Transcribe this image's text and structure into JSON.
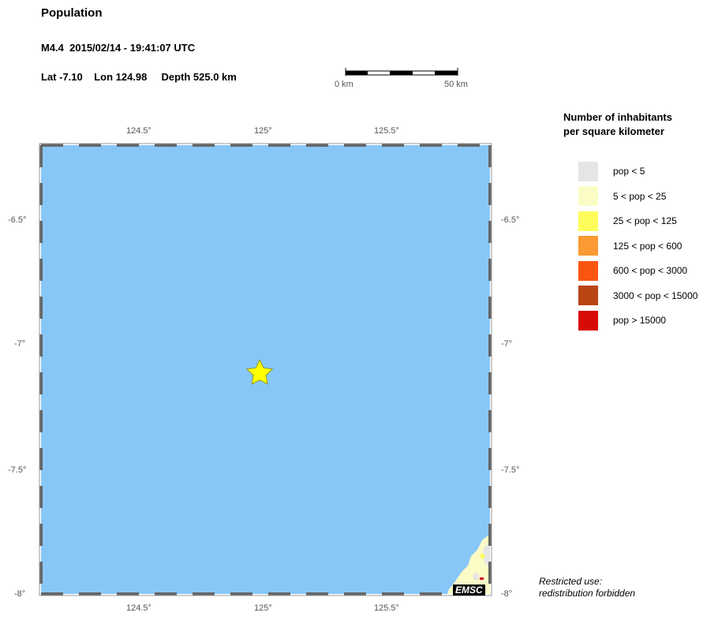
{
  "header": {
    "title": "Population",
    "event_line": "M4.4  2015/02/14 - 19:41:07 UTC",
    "coords_line": "Lat -7.10    Lon 124.98     Depth 525.0 km"
  },
  "scale_bar": {
    "start_label": "0 km",
    "end_label": "50 km"
  },
  "map": {
    "lon_ticks": [
      "124.5°",
      "125°",
      "125.5°"
    ],
    "lat_ticks": [
      "-6.5°",
      "-7°",
      "-7.5°",
      "-8°"
    ],
    "epicenter": {
      "lat": -7.1,
      "lon": 124.98,
      "icon": "star-icon",
      "color": "#ffff00"
    },
    "ocean_color": "#87c7f8",
    "emsc_label": "EMSC"
  },
  "legend": {
    "title_line1": "Number of inhabitants",
    "title_line2": "per square kilometer",
    "items": [
      {
        "label": "pop < 5",
        "color": "#e5e5e5"
      },
      {
        "label": "5 < pop < 25",
        "color": "#fbfbc5"
      },
      {
        "label": "25 < pop < 125",
        "color": "#fcfc5a"
      },
      {
        "label": "125 < pop < 600",
        "color": "#fb9932"
      },
      {
        "label": "600 < pop < 3000",
        "color": "#fb5512"
      },
      {
        "label": "3000 < pop < 15000",
        "color": "#b94513"
      },
      {
        "label": "pop > 15000",
        "color": "#d80a05"
      }
    ]
  },
  "footer": {
    "line1": "Restricted use:",
    "line2": "redistribution forbidden"
  }
}
